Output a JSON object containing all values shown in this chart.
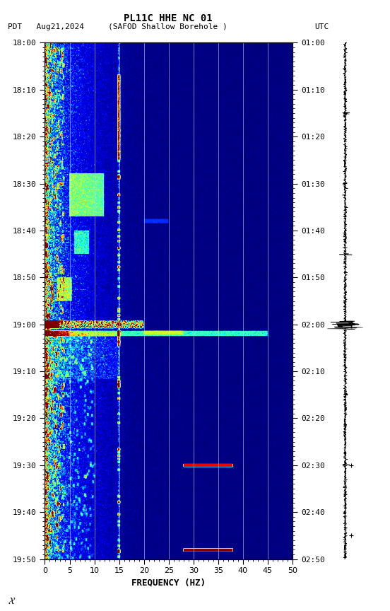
{
  "title_line1": "PL11C HHE NC 01",
  "title_line2_left": "PDT   Aug21,2024",
  "title_line2_center": "(SAFOD Shallow Borehole )",
  "title_line2_right": "UTC",
  "xlabel": "FREQUENCY (HZ)",
  "freq_min": 0,
  "freq_max": 50,
  "pdt_ticks": [
    "18:00",
    "18:10",
    "18:20",
    "18:30",
    "18:40",
    "18:50",
    "19:00",
    "19:10",
    "19:20",
    "19:30",
    "19:40",
    "19:50"
  ],
  "utc_ticks": [
    "01:00",
    "01:10",
    "01:20",
    "01:30",
    "01:40",
    "01:50",
    "02:00",
    "02:10",
    "02:20",
    "02:30",
    "02:40",
    "02:50"
  ],
  "freq_ticks": [
    0,
    5,
    10,
    15,
    20,
    25,
    30,
    35,
    40,
    45,
    50
  ],
  "vertical_lines_freq": [
    5,
    10,
    15,
    20,
    25,
    30,
    35,
    40,
    45
  ],
  "background_color": "#ffffff",
  "colormap": "jet",
  "font_family": "monospace",
  "seed": 12345,
  "n_time": 660,
  "n_freq": 500,
  "total_minutes": 110
}
